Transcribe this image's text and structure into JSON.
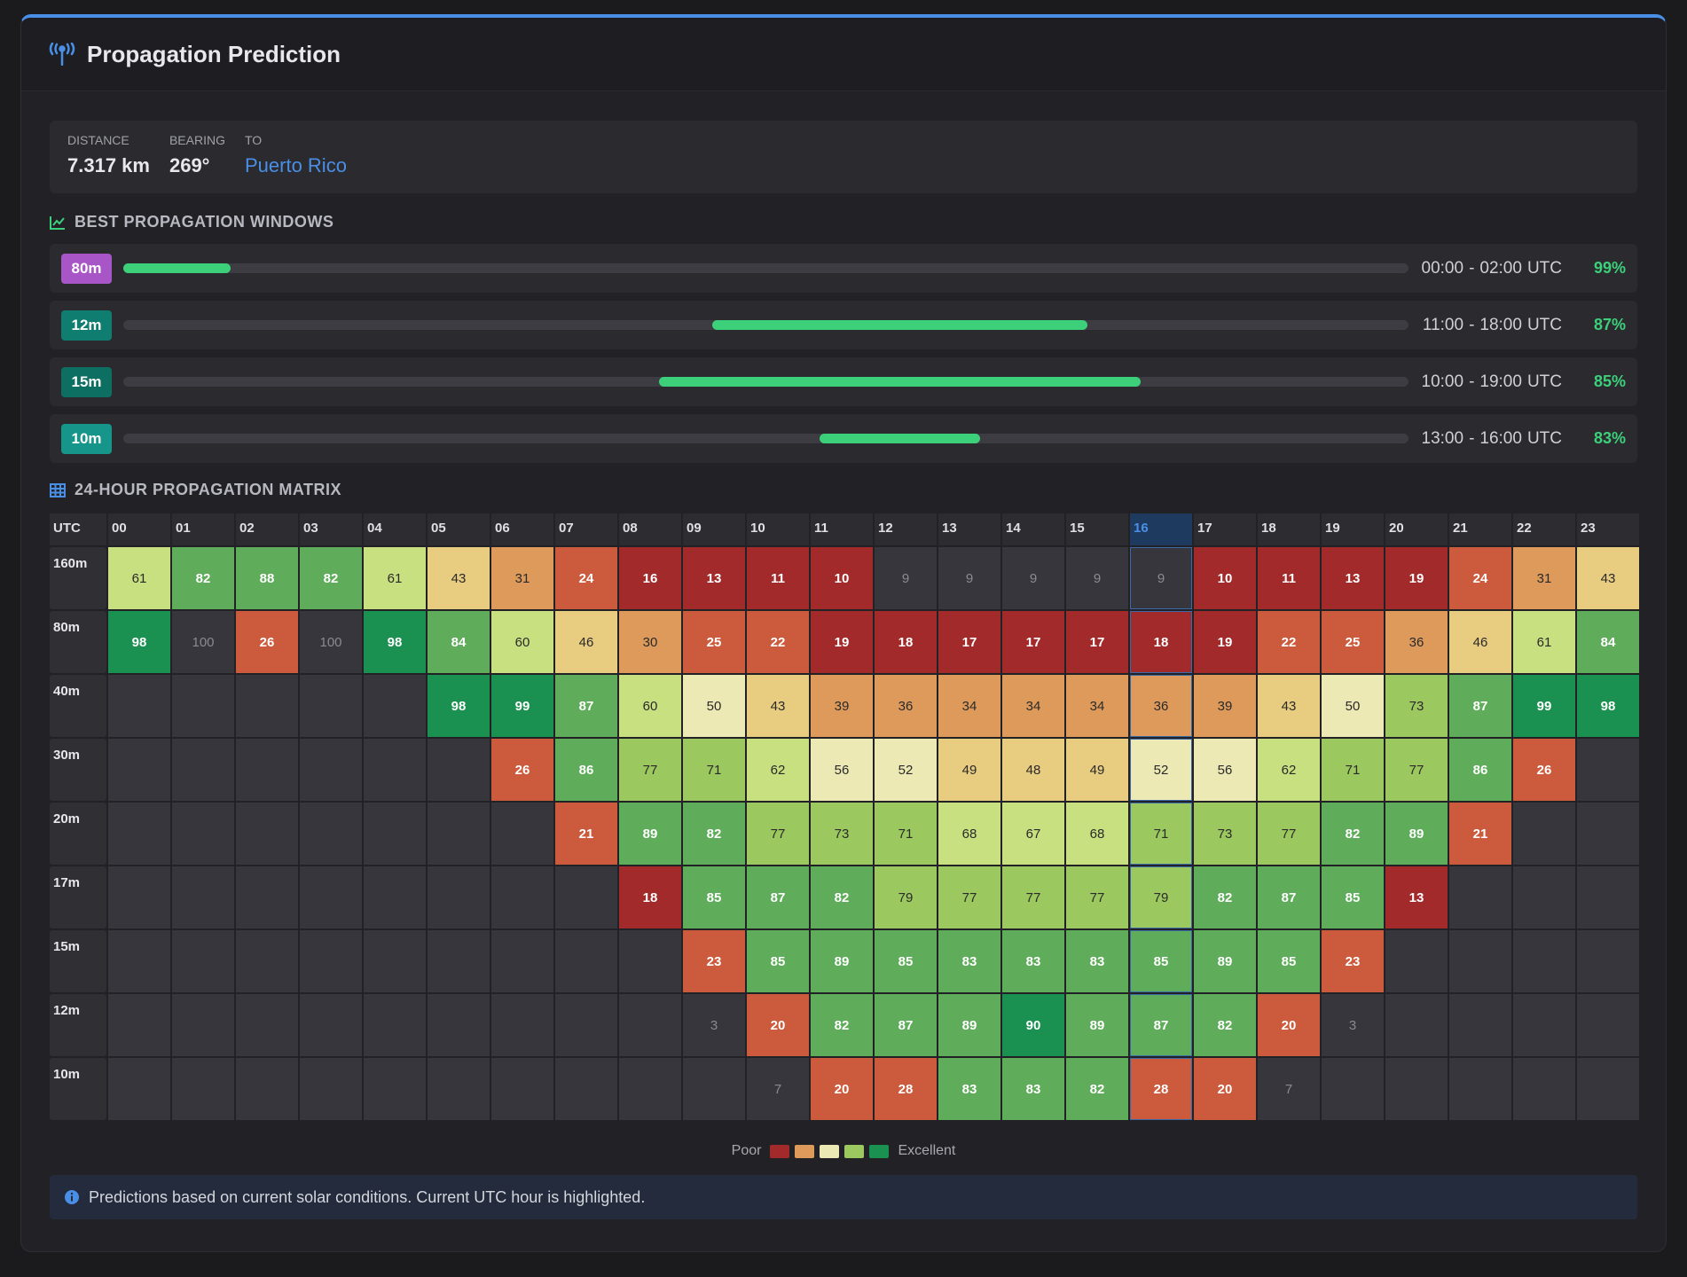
{
  "header": {
    "title": "Propagation Prediction"
  },
  "summary": [
    {
      "label": "DISTANCE",
      "value": "7.317 km"
    },
    {
      "label": "BEARING",
      "value": "269°"
    },
    {
      "label": "TO",
      "value": "Puerto Rico"
    }
  ],
  "windows_title": "BEST PROPAGATION WINDOWS",
  "windows": [
    {
      "band": "80m",
      "color": "#a855c7",
      "start": "00:00",
      "end": "02:00",
      "unit": "UTC",
      "percent": "99%"
    },
    {
      "band": "12m",
      "color": "#0f7d6f",
      "start": "11:00",
      "end": "18:00",
      "unit": "UTC",
      "percent": "87%"
    },
    {
      "band": "15m",
      "color": "#0d6e62",
      "start": "10:00",
      "end": "19:00",
      "unit": "UTC",
      "percent": "85%"
    },
    {
      "band": "10m",
      "color": "#16968a",
      "start": "13:00",
      "end": "16:00",
      "unit": "UTC",
      "percent": "83%"
    }
  ],
  "matrix_title": "24-HOUR PROPAGATION MATRIX",
  "matrix": {
    "corner": "UTC",
    "current_hour": "16",
    "hours": [
      "00",
      "01",
      "02",
      "03",
      "04",
      "05",
      "06",
      "07",
      "08",
      "09",
      "10",
      "11",
      "12",
      "13",
      "14",
      "15",
      "16",
      "17",
      "18",
      "19",
      "20",
      "21",
      "22",
      "23"
    ],
    "rows": [
      {
        "band": "160m",
        "values": [
          61,
          82,
          88,
          82,
          61,
          43,
          31,
          24,
          16,
          13,
          11,
          10,
          9,
          9,
          9,
          9,
          9,
          10,
          11,
          13,
          19,
          24,
          31,
          43
        ]
      },
      {
        "band": "80m",
        "values": [
          98,
          100,
          26,
          100,
          98,
          84,
          60,
          46,
          30,
          25,
          22,
          19,
          18,
          17,
          17,
          17,
          18,
          19,
          22,
          25,
          36,
          46,
          61,
          84
        ]
      },
      {
        "band": "40m",
        "values": [
          null,
          null,
          null,
          null,
          null,
          98,
          99,
          87,
          60,
          50,
          43,
          39,
          36,
          34,
          34,
          34,
          36,
          39,
          43,
          50,
          73,
          87,
          99,
          98
        ]
      },
      {
        "band": "30m",
        "values": [
          null,
          null,
          null,
          null,
          null,
          null,
          26,
          86,
          77,
          71,
          62,
          56,
          52,
          49,
          48,
          49,
          52,
          56,
          62,
          71,
          77,
          86,
          26,
          null
        ]
      },
      {
        "band": "20m",
        "values": [
          null,
          null,
          null,
          null,
          null,
          null,
          null,
          21,
          89,
          82,
          77,
          73,
          71,
          68,
          67,
          68,
          71,
          73,
          77,
          82,
          89,
          21,
          null,
          null
        ]
      },
      {
        "band": "17m",
        "values": [
          null,
          null,
          null,
          null,
          null,
          null,
          null,
          null,
          18,
          85,
          87,
          82,
          79,
          77,
          77,
          77,
          79,
          82,
          87,
          85,
          13,
          null,
          null,
          null
        ]
      },
      {
        "band": "15m",
        "values": [
          null,
          null,
          null,
          null,
          null,
          null,
          null,
          null,
          null,
          23,
          85,
          89,
          85,
          83,
          83,
          83,
          85,
          89,
          85,
          23,
          null,
          null,
          null,
          null
        ]
      },
      {
        "band": "12m",
        "values": [
          null,
          null,
          null,
          null,
          null,
          null,
          null,
          null,
          null,
          3,
          20,
          82,
          87,
          89,
          90,
          89,
          87,
          82,
          20,
          3,
          null,
          null,
          null,
          null
        ]
      },
      {
        "band": "10m",
        "values": [
          null,
          null,
          null,
          null,
          null,
          null,
          null,
          null,
          null,
          null,
          7,
          20,
          28,
          83,
          83,
          82,
          28,
          20,
          7,
          null,
          null,
          null,
          null,
          null
        ]
      }
    ]
  },
  "legend": {
    "low": "Poor",
    "high": "Excellent"
  },
  "note": "Predictions based on current solar conditions. Current UTC hour is highlighted."
}
